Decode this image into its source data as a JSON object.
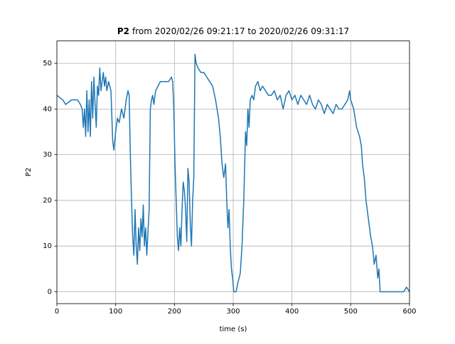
{
  "chart_data": {
    "type": "line",
    "title": {
      "bold": "P2",
      "rest": "from 2020/02/26 09:21:17 to 2020/02/26 09:31:17"
    },
    "x_label": "time (s)",
    "y_label": "P2",
    "x": [
      0,
      5,
      10,
      15,
      20,
      25,
      30,
      35,
      40,
      43,
      45,
      47,
      49,
      51,
      53,
      55,
      57,
      59,
      61,
      63,
      65,
      67,
      69,
      71,
      73,
      75,
      77,
      79,
      81,
      83,
      85,
      88,
      92,
      95,
      97,
      100,
      103,
      106,
      110,
      114,
      118,
      121,
      123,
      125,
      127,
      129,
      131,
      133,
      135,
      137,
      139,
      141,
      143,
      145,
      147,
      149,
      151,
      153,
      155,
      157,
      159,
      161,
      163,
      165,
      168,
      172,
      176,
      180,
      185,
      190,
      195,
      197,
      199,
      201,
      203,
      205,
      207,
      209,
      211,
      213,
      215,
      217,
      219,
      221,
      223,
      225,
      227,
      229,
      231,
      233,
      235,
      237,
      240,
      245,
      250,
      255,
      260,
      265,
      270,
      275,
      278,
      281,
      284,
      287,
      289,
      291,
      293,
      295,
      297,
      299,
      301,
      303,
      305,
      308,
      312,
      315,
      318,
      321,
      323,
      325,
      327,
      329,
      332,
      335,
      338,
      342,
      346,
      350,
      355,
      360,
      365,
      370,
      375,
      380,
      385,
      390,
      395,
      400,
      405,
      410,
      415,
      420,
      425,
      430,
      435,
      440,
      445,
      450,
      455,
      460,
      465,
      470,
      475,
      480,
      485,
      490,
      495,
      498,
      500,
      505,
      510,
      515,
      518,
      520,
      523,
      526,
      530,
      534,
      537,
      540,
      543,
      546,
      548,
      550,
      555,
      560,
      565,
      570,
      575,
      580,
      585,
      590,
      595,
      600
    ],
    "series": [
      {
        "name": "P2",
        "color": "#1f77b4",
        "values": [
          43,
          42.5,
          42,
          41,
          41.5,
          42,
          42,
          42,
          41,
          40,
          36,
          40,
          34,
          44,
          35,
          42,
          34,
          46,
          38,
          47,
          41,
          36,
          45,
          43,
          49,
          44,
          46,
          48,
          45,
          47,
          44,
          46,
          44,
          33,
          31,
          35,
          38,
          37,
          40,
          38,
          42,
          44,
          43,
          30,
          20,
          12,
          8,
          18,
          10,
          6,
          14,
          9,
          16,
          12,
          19,
          10,
          14,
          8,
          13,
          18,
          40,
          42,
          43,
          41,
          44,
          45,
          46,
          46,
          46,
          46,
          47,
          46,
          40,
          28,
          20,
          12,
          9,
          14,
          10,
          18,
          24,
          22,
          18,
          11,
          27,
          24,
          15,
          10,
          20,
          25,
          52,
          50,
          49,
          48,
          48,
          47,
          46,
          45,
          42,
          38,
          34,
          28,
          25,
          28,
          20,
          14,
          18,
          10,
          5,
          3,
          0,
          0,
          0,
          2,
          4,
          10,
          20,
          35,
          32,
          40,
          36,
          42,
          43,
          42,
          45,
          46,
          44,
          45,
          44,
          43,
          43,
          44,
          42,
          43,
          40,
          43,
          44,
          42,
          43,
          41,
          43,
          42,
          41,
          43,
          41,
          40,
          42,
          41,
          39,
          41,
          40,
          39,
          41,
          40,
          40,
          41,
          42,
          44,
          42,
          40,
          36,
          34,
          32,
          28,
          25,
          20,
          16,
          12,
          10,
          6,
          8,
          3,
          5,
          0,
          0,
          0,
          0,
          0,
          0,
          0,
          0,
          0,
          1,
          0
        ]
      }
    ],
    "xlim": [
      0,
      600
    ],
    "xticks": [
      0,
      100,
      200,
      300,
      400,
      500,
      600
    ],
    "ylim": [
      -2.6,
      54.9
    ],
    "yticks": [
      0,
      10,
      20,
      30,
      40,
      50
    ],
    "grid": true
  }
}
